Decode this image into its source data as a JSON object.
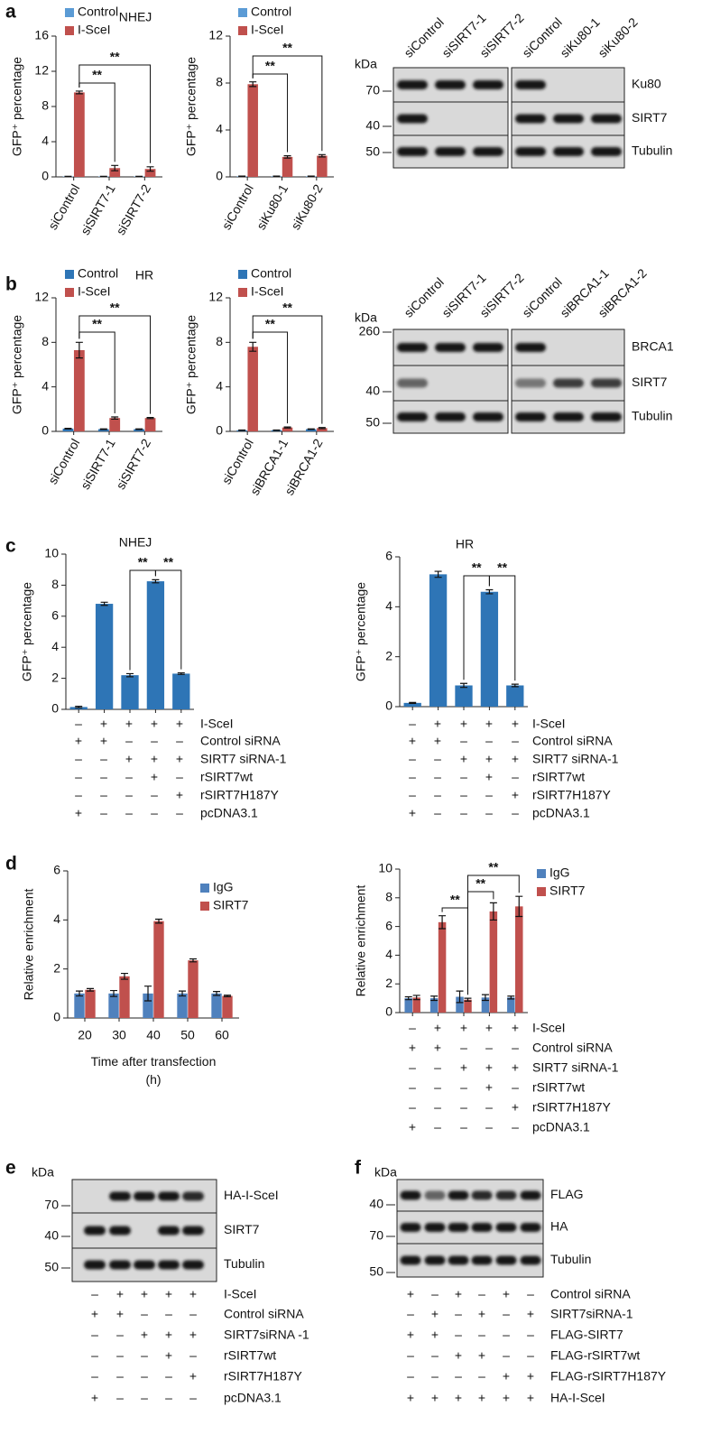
{
  "panel_labels": [
    "a",
    "b",
    "c",
    "d",
    "e",
    "f"
  ],
  "chart_data": [
    {
      "type": "bar",
      "title": "NHEJ",
      "ylabel": "GFP⁺ percentage",
      "categories": [
        "siControl",
        "siSIRT7-1",
        "siSIRT7-2"
      ],
      "series": [
        {
          "name": "Control",
          "color": "#5b9bd5",
          "values": [
            0.05,
            0.05,
            0.05
          ],
          "errors": [
            0.02,
            0.02,
            0.02
          ]
        },
        {
          "name": "I-SceI",
          "color": "#c0504d",
          "values": [
            9.6,
            1.0,
            0.9
          ],
          "errors": [
            0.15,
            0.3,
            0.25
          ]
        }
      ],
      "ylim": [
        0,
        16
      ],
      "yticks": [
        0,
        4,
        8,
        12,
        16
      ],
      "annotations": [
        "**",
        "**"
      ]
    },
    {
      "type": "bar",
      "ylabel": "GFP⁺ percentage",
      "categories": [
        "siControl",
        "siKu80-1",
        "siKu80-2"
      ],
      "series": [
        {
          "name": "Control",
          "color": "#5b9bd5",
          "values": [
            0.05,
            0.05,
            0.05
          ],
          "errors": [
            0.02,
            0.02,
            0.02
          ]
        },
        {
          "name": "I-SceI",
          "color": "#c0504d",
          "values": [
            7.9,
            1.7,
            1.8
          ],
          "errors": [
            0.2,
            0.1,
            0.1
          ]
        }
      ],
      "ylim": [
        0,
        12
      ],
      "yticks": [
        0,
        4,
        8,
        12
      ],
      "annotations": [
        "**",
        "**"
      ]
    },
    {
      "type": "bar",
      "title": "HR",
      "ylabel": "GFP⁺ percentage",
      "categories": [
        "siControl",
        "siSIRT7-1",
        "siSIRT7-2"
      ],
      "series": [
        {
          "name": "Control",
          "color": "#2e75b6",
          "values": [
            0.25,
            0.2,
            0.2
          ],
          "errors": [
            0.03,
            0.03,
            0.03
          ]
        },
        {
          "name": "I-SceI",
          "color": "#c0504d",
          "values": [
            7.3,
            1.2,
            1.2
          ],
          "errors": [
            0.7,
            0.1,
            0.05
          ]
        }
      ],
      "ylim": [
        0,
        12
      ],
      "yticks": [
        0,
        4,
        8,
        12
      ],
      "annotations": [
        "**",
        "**"
      ]
    },
    {
      "type": "bar",
      "ylabel": "GFP⁺ percentage",
      "categories": [
        "siControl",
        "siBRCA1-1",
        "siBRCA1-2"
      ],
      "series": [
        {
          "name": "Control",
          "color": "#2e75b6",
          "values": [
            0.1,
            0.1,
            0.2
          ],
          "errors": [
            0.02,
            0.02,
            0.02
          ]
        },
        {
          "name": "I-SceI",
          "color": "#c0504d",
          "values": [
            7.6,
            0.35,
            0.3
          ],
          "errors": [
            0.4,
            0.05,
            0.05
          ]
        }
      ],
      "ylim": [
        0,
        12
      ],
      "yticks": [
        0,
        4,
        8,
        12
      ],
      "annotations": [
        "**",
        "**"
      ]
    },
    {
      "type": "bar",
      "title": "NHEJ",
      "ylabel": "GFP⁺ percentage",
      "color": "#2e75b6",
      "values": [
        0.15,
        6.8,
        2.2,
        8.25,
        2.3
      ],
      "errors": [
        0.05,
        0.1,
        0.1,
        0.1,
        0.05
      ],
      "ylim": [
        0,
        10
      ],
      "yticks": [
        0,
        2,
        4,
        6,
        8,
        10
      ],
      "annotations": [
        "**",
        "**"
      ]
    },
    {
      "type": "bar",
      "title": "HR",
      "ylabel": "GFP⁺ percentage",
      "color": "#2e75b6",
      "values": [
        0.15,
        5.3,
        0.85,
        4.6,
        0.85
      ],
      "errors": [
        0.02,
        0.12,
        0.08,
        0.08,
        0.05
      ],
      "ylim": [
        0,
        6
      ],
      "yticks": [
        0,
        2,
        4,
        6
      ],
      "annotations": [
        "**",
        "**"
      ]
    },
    {
      "type": "bar",
      "ylabel": "Relative enrichment",
      "xlabel": "Time after transfection (h)",
      "categories": [
        20,
        30,
        40,
        50,
        60
      ],
      "series": [
        {
          "name": "IgG",
          "color": "#4f81bd",
          "values": [
            1.0,
            1.0,
            1.0,
            1.0,
            1.0
          ],
          "errors": [
            0.1,
            0.12,
            0.3,
            0.1,
            0.08
          ]
        },
        {
          "name": "SIRT7",
          "color": "#c0504d",
          "values": [
            1.15,
            1.7,
            3.95,
            2.35,
            0.9
          ],
          "errors": [
            0.05,
            0.12,
            0.08,
            0.06,
            0.03
          ]
        }
      ],
      "ylim": [
        0,
        6
      ],
      "yticks": [
        0,
        2,
        4,
        6
      ]
    },
    {
      "type": "bar",
      "ylabel": "Relative enrichment",
      "series": [
        {
          "name": "IgG",
          "color": "#4f81bd",
          "values": [
            1.0,
            1.0,
            1.1,
            1.05,
            1.05
          ],
          "errors": [
            0.1,
            0.15,
            0.4,
            0.2,
            0.1
          ]
        },
        {
          "name": "SIRT7",
          "color": "#c0504d",
          "values": [
            1.05,
            6.3,
            0.9,
            7.05,
            7.4
          ],
          "errors": [
            0.15,
            0.45,
            0.1,
            0.6,
            0.7
          ]
        }
      ],
      "ylim": [
        0,
        10
      ],
      "yticks": [
        0,
        2,
        4,
        6,
        8,
        10
      ],
      "annotations": [
        "**",
        "**",
        "**"
      ]
    }
  ],
  "blots": [
    {
      "kda_label": "kDa",
      "lanes": [
        "siControl",
        "siSIRT7-1",
        "siSIRT7-2",
        "siControl",
        "siKu80-1",
        "siKu80-2"
      ],
      "markers": [
        70,
        40,
        50
      ],
      "rows": [
        "Ku80",
        "SIRT7",
        "Tubulin"
      ]
    },
    {
      "kda_label": "kDa",
      "lanes": [
        "siControl",
        "siSIRT7-1",
        "siSIRT7-2",
        "siControl",
        "siBRCA1-1",
        "siBRCA1-2"
      ],
      "markers": [
        260,
        40,
        50
      ],
      "rows": [
        "BRCA1",
        "SIRT7",
        "Tubulin"
      ]
    },
    {
      "kda_label": "kDa",
      "markers": [
        70,
        40,
        50
      ],
      "rows": [
        "HA-I-SceI",
        "SIRT7",
        "Tubulin"
      ]
    },
    {
      "kda_label": "kDa",
      "markers": [
        40,
        70,
        50
      ],
      "rows": [
        "FLAG",
        "HA",
        "Tubulin"
      ]
    }
  ],
  "tables": [
    {
      "rows": [
        {
          "label": "I-SceI",
          "signs": [
            "–",
            "+",
            "+",
            "+",
            "+"
          ]
        },
        {
          "label": "Control siRNA",
          "signs": [
            "+",
            "+",
            "–",
            "–",
            "–"
          ]
        },
        {
          "label": "SIRT7 siRNA-1",
          "signs": [
            "–",
            "–",
            "+",
            "+",
            "+"
          ]
        },
        {
          "label": "rSIRT7wt",
          "signs": [
            "–",
            "–",
            "–",
            "+",
            "–"
          ]
        },
        {
          "label": "rSIRT7H187Y",
          "signs": [
            "–",
            "–",
            "–",
            "–",
            "+"
          ]
        },
        {
          "label": "pcDNA3.1",
          "signs": [
            "+",
            "–",
            "–",
            "–",
            "–"
          ]
        }
      ]
    },
    {
      "rows": [
        {
          "label": "I-SceI",
          "signs": [
            "–",
            "+",
            "+",
            "+",
            "+"
          ]
        },
        {
          "label": "Control siRNA",
          "signs": [
            "+",
            "+",
            "–",
            "–",
            "–"
          ]
        },
        {
          "label": "SIRT7 siRNA-1",
          "signs": [
            "–",
            "–",
            "+",
            "+",
            "+"
          ]
        },
        {
          "label": "rSIRT7wt",
          "signs": [
            "–",
            "–",
            "–",
            "+",
            "–"
          ]
        },
        {
          "label": "rSIRT7H187Y",
          "signs": [
            "–",
            "–",
            "–",
            "–",
            "+"
          ]
        },
        {
          "label": "pcDNA3.1",
          "signs": [
            "+",
            "–",
            "–",
            "–",
            "–"
          ]
        }
      ]
    },
    {
      "rows": [
        {
          "label": "I-SceI",
          "signs": [
            "–",
            "+",
            "+",
            "+",
            "+"
          ]
        },
        {
          "label": "Control siRNA",
          "signs": [
            "+",
            "+",
            "–",
            "–",
            "–"
          ]
        },
        {
          "label": "SIRT7 siRNA-1",
          "signs": [
            "–",
            "–",
            "+",
            "+",
            "+"
          ]
        },
        {
          "label": "rSIRT7wt",
          "signs": [
            "–",
            "–",
            "–",
            "+",
            "–"
          ]
        },
        {
          "label": "rSIRT7H187Y",
          "signs": [
            "–",
            "–",
            "–",
            "–",
            "+"
          ]
        },
        {
          "label": "pcDNA3.1",
          "signs": [
            "+",
            "–",
            "–",
            "–",
            "–"
          ]
        }
      ]
    },
    {
      "rows": [
        {
          "label": "I-SceI",
          "signs": [
            "–",
            "+",
            "+",
            "+",
            "+"
          ]
        },
        {
          "label": "Control siRNA",
          "signs": [
            "+",
            "+",
            "–",
            "–",
            "–"
          ]
        },
        {
          "label": "SIRT7siRNA -1",
          "signs": [
            "–",
            "–",
            "+",
            "+",
            "+"
          ]
        },
        {
          "label": "rSIRT7wt",
          "signs": [
            "–",
            "–",
            "–",
            "+",
            "–"
          ]
        },
        {
          "label": "rSIRT7H187Y",
          "signs": [
            "–",
            "–",
            "–",
            "–",
            "+"
          ]
        },
        {
          "label": "pcDNA3.1",
          "signs": [
            "+",
            "–",
            "–",
            "–",
            "–"
          ]
        }
      ]
    },
    {
      "rows": [
        {
          "label": "Control siRNA",
          "signs": [
            "+",
            "–",
            "+",
            "–",
            "+",
            "–"
          ]
        },
        {
          "label": "SIRT7siRNA-1",
          "signs": [
            "–",
            "+",
            "–",
            "+",
            "–",
            "+"
          ]
        },
        {
          "label": "FLAG-SIRT7",
          "signs": [
            "+",
            "+",
            "–",
            "–",
            "–",
            "–"
          ]
        },
        {
          "label": "FLAG-rSIRT7wt",
          "signs": [
            "–",
            "–",
            "+",
            "+",
            "–",
            "–"
          ]
        },
        {
          "label": "FLAG-rSIRT7H187Y",
          "signs": [
            "–",
            "–",
            "–",
            "–",
            "+",
            "+"
          ]
        },
        {
          "label": "HA-I-SceI",
          "signs": [
            "+",
            "+",
            "+",
            "+",
            "+",
            "+"
          ]
        }
      ]
    }
  ]
}
